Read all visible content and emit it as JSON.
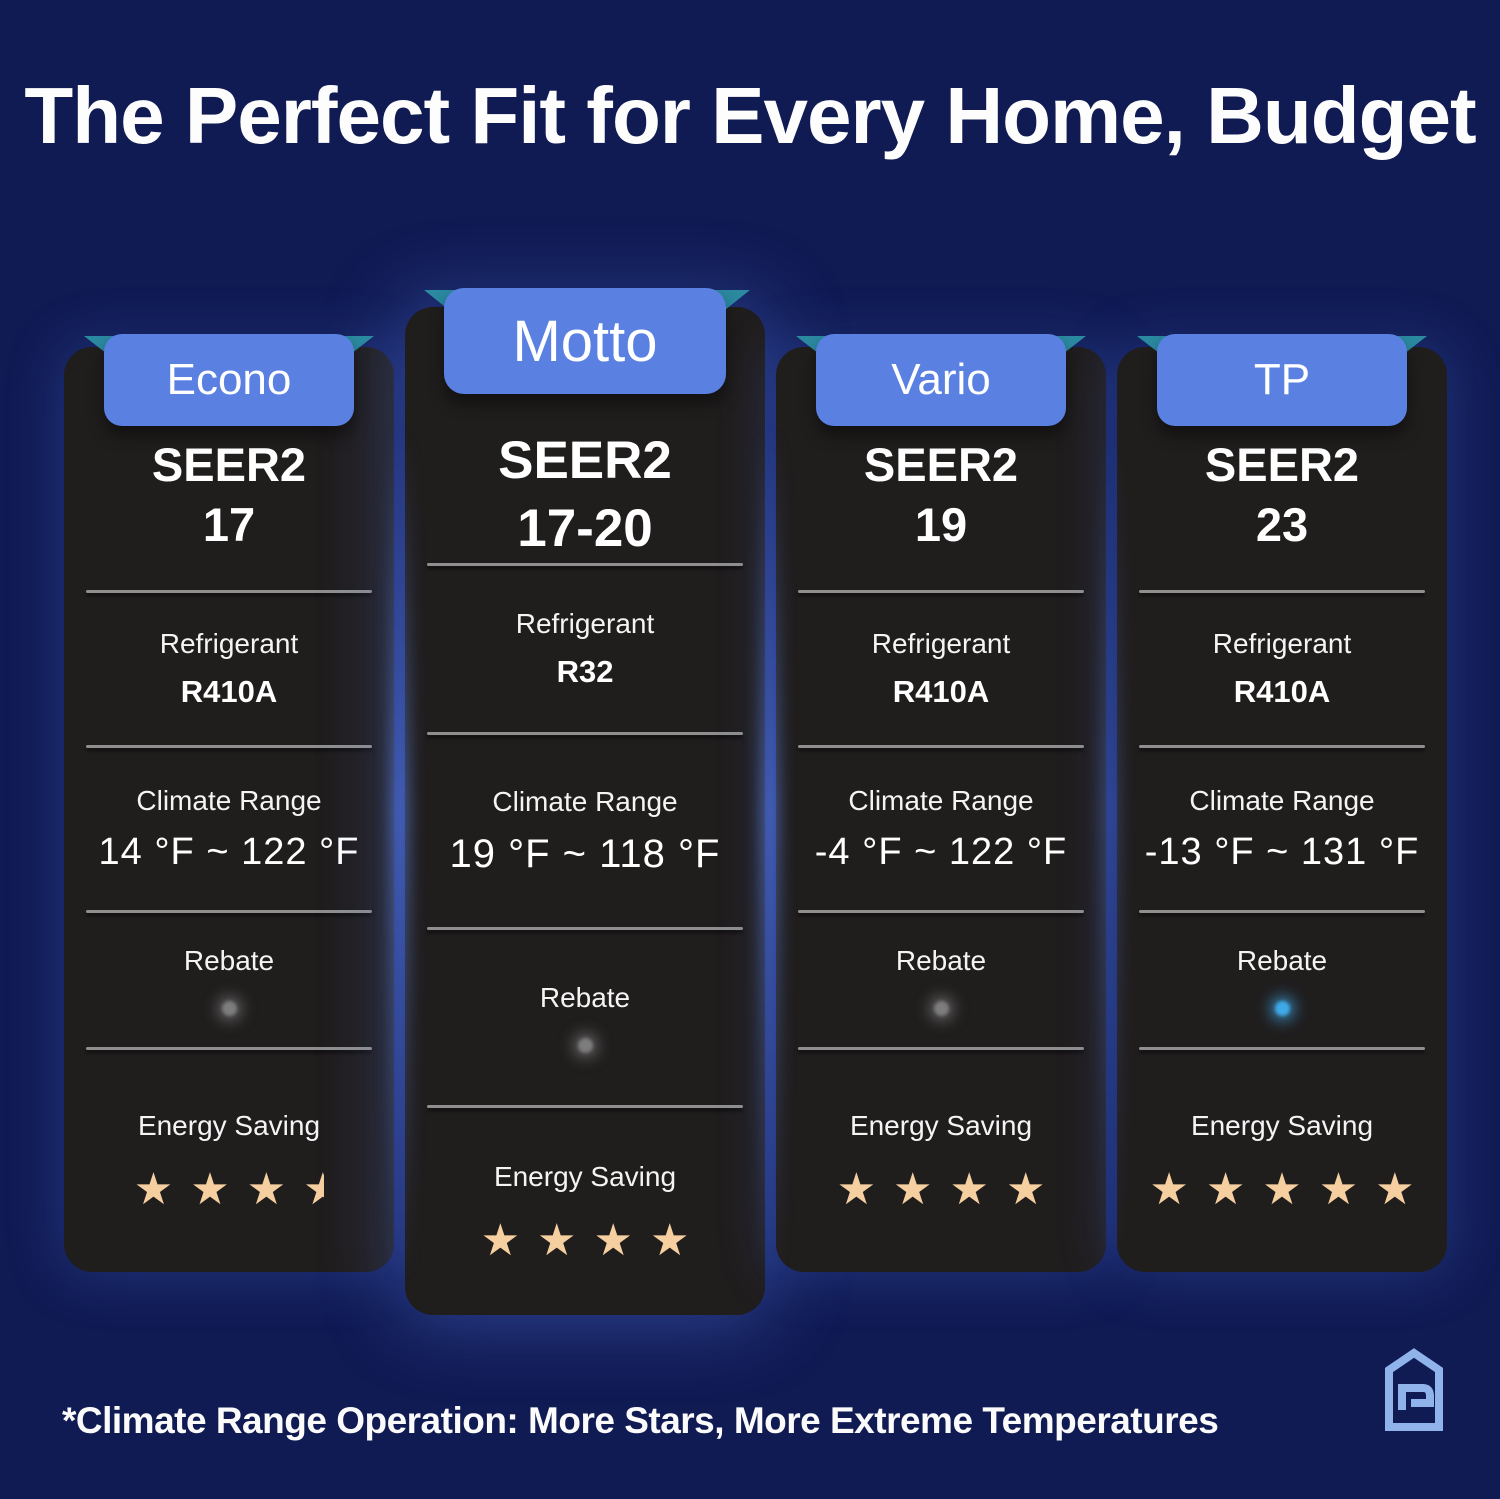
{
  "title": "The Perfect Fit for Every Home, Budget",
  "footnote": "*Climate Range Operation: More Stars, More Extreme Temperatures",
  "colors": {
    "bg": "#101b53",
    "card": "#201d1d",
    "tab": "#5a81e1",
    "ribbon": "#2b89a0",
    "divider": "#8f8f8f",
    "star": "#f6cfa0",
    "logo": "#8fb3ea"
  },
  "cards": [
    {
      "tab": "Econo",
      "seer2": {
        "label": "SEER2",
        "value": "17"
      },
      "refrigerant": {
        "label": "Refrigerant",
        "value": "R410A"
      },
      "climate_range": {
        "label": "Climate Range",
        "value": "14 °F ~ 122 °F"
      },
      "rebate": {
        "label": "Rebate",
        "dot_color": "#7d7d7d"
      },
      "energy_saving": {
        "label": "Energy Saving",
        "stars": 3.5
      }
    },
    {
      "tab": "Motto",
      "seer2": {
        "label": "SEER2",
        "value": "17-20"
      },
      "refrigerant": {
        "label": "Refrigerant",
        "value": "R32"
      },
      "climate_range": {
        "label": "Climate Range",
        "value": "19 °F ~ 118 °F"
      },
      "rebate": {
        "label": "Rebate",
        "dot_color": "#7d7d7d"
      },
      "energy_saving": {
        "label": "Energy Saving",
        "stars": 4
      }
    },
    {
      "tab": "Vario",
      "seer2": {
        "label": "SEER2",
        "value": "19"
      },
      "refrigerant": {
        "label": "Refrigerant",
        "value": "R410A"
      },
      "climate_range": {
        "label": "Climate Range",
        "value": "-4 °F ~ 122 °F"
      },
      "rebate": {
        "label": "Rebate",
        "dot_color": "#7d7d7d"
      },
      "energy_saving": {
        "label": "Energy Saving",
        "stars": 4
      }
    },
    {
      "tab": "TP",
      "seer2": {
        "label": "SEER2",
        "value": "23"
      },
      "refrigerant": {
        "label": "Refrigerant",
        "value": "R410A"
      },
      "climate_range": {
        "label": "Climate Range",
        "value": "-13 °F ~ 131 °F"
      },
      "rebate": {
        "label": "Rebate",
        "dot_color": "#3fa9e8"
      },
      "energy_saving": {
        "label": "Energy Saving",
        "stars": 5
      }
    }
  ]
}
